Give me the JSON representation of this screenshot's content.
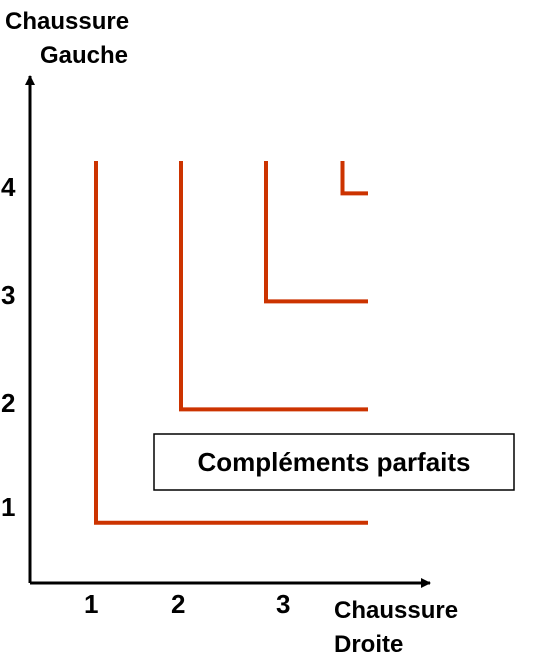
{
  "chart_data": {
    "type": "line",
    "title": "",
    "xlabel": [
      "Chaussure",
      "Droite"
    ],
    "ylabel": [
      "Chaussure",
      "Gauche"
    ],
    "x_ticks": [
      "1",
      "2",
      "3"
    ],
    "y_ticks": [
      "4",
      "3",
      "2",
      "1"
    ],
    "annotation": "Compléments parfaits",
    "grid": false,
    "colors": {
      "curve": "#cc3300",
      "axis": "#000000"
    },
    "series": [
      {
        "x": [
          1,
          1,
          4.2
        ],
        "y": [
          4.25,
          0.9,
          0.9
        ]
      },
      {
        "x": [
          2,
          2,
          4.2
        ],
        "y": [
          4.25,
          1.95,
          1.95
        ]
      },
      {
        "x": [
          3,
          3,
          4.2
        ],
        "y": [
          4.25,
          2.95,
          2.95
        ]
      },
      {
        "x": [
          3.9,
          3.9,
          4.2
        ],
        "y": [
          4.25,
          3.95,
          3.95
        ]
      }
    ]
  }
}
